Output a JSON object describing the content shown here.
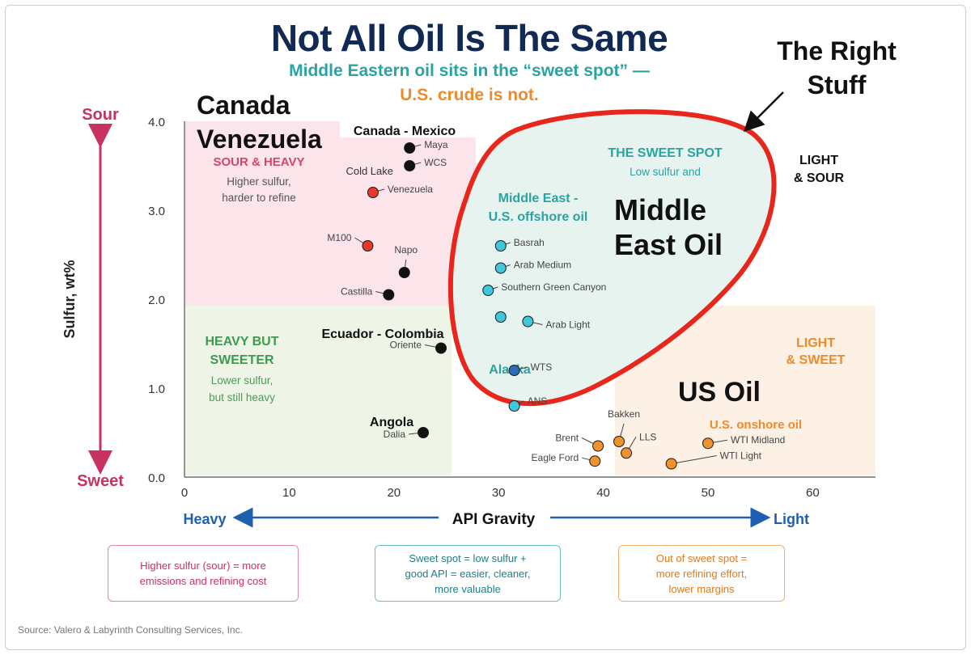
{
  "header": {
    "title": "Not All Oil Is The Same",
    "subtitle_line1": "Middle Eastern oil sits in the “sweet spot” —",
    "subtitle_line2": "U.S. crude is not."
  },
  "colors": {
    "title": "#102a54",
    "teal": "#2aa3a3",
    "orange": "#ef8a2b",
    "pink": "#c8325e",
    "green": "#3f9a4f",
    "blue": "#1f5fb0",
    "highlight_ring": "#e8261c"
  },
  "chart_data": {
    "type": "scatter",
    "xlabel": "API Gravity",
    "ylabel": "Sulfur, wt%",
    "xlim": [
      0,
      66
    ],
    "ylim": [
      0,
      4.0
    ],
    "x_ticks": [
      0,
      10,
      20,
      30,
      40,
      50,
      60
    ],
    "y_ticks": [
      0.0,
      1.0,
      2.0,
      3.0,
      4.0
    ],
    "axis_ends": {
      "y_top": "Sour",
      "y_bottom": "Sweet",
      "x_left": "Heavy",
      "x_right": "Light"
    },
    "regions": [
      {
        "name": "sour-heavy",
        "title": "SOUR & HEAVY",
        "note_line1": "Higher sulfur,",
        "note_line2": "harder to refine",
        "color": "#fbe4ea"
      },
      {
        "name": "heavy-sweeter",
        "title_line1": "HEAVY BUT",
        "title_line2": "SWEETER",
        "note_line1": "Lower sulfur,",
        "note_line2": "but still heavy",
        "color": "#eef4e6"
      },
      {
        "name": "light-sweet",
        "title_line1": "LIGHT",
        "title_line2": "& SWEET",
        "color": "#fdf1e6"
      },
      {
        "name": "sweet-spot",
        "title": "THE SWEET SPOT",
        "note": "Low sulfur and",
        "color": "#e8f4ee"
      },
      {
        "name": "light-sour",
        "title_line1": "LIGHT",
        "title_line2": "& SOUR"
      }
    ],
    "points": [
      {
        "label": "Maya",
        "x": 21.5,
        "y": 3.7,
        "color": "#111111"
      },
      {
        "label": "WCS",
        "x": 21.5,
        "y": 3.5,
        "color": "#111111"
      },
      {
        "label": "Venezuela",
        "x": 18.0,
        "y": 3.2,
        "color": "#e8382b"
      },
      {
        "label": "M100",
        "x": 17.5,
        "y": 2.6,
        "color": "#e8382b"
      },
      {
        "label": "Napo",
        "x": 21.0,
        "y": 2.3,
        "color": "#111111"
      },
      {
        "label": "Castilla",
        "x": 19.5,
        "y": 2.05,
        "color": "#111111"
      },
      {
        "label": "Oriente",
        "x": 24.5,
        "y": 1.45,
        "color": "#111111"
      },
      {
        "label": "Dalia",
        "x": 22.8,
        "y": 0.5,
        "color": "#111111"
      },
      {
        "label": "Basrah",
        "x": 30.2,
        "y": 2.6,
        "color": "#3fc8dc"
      },
      {
        "label": "Arab Medium",
        "x": 30.2,
        "y": 2.35,
        "color": "#3fc8dc"
      },
      {
        "label": "Southern Green Canyon",
        "x": 29.0,
        "y": 2.1,
        "color": "#3fc8dc"
      },
      {
        "label": "",
        "x": 30.2,
        "y": 1.8,
        "color": "#3fc8dc"
      },
      {
        "label": "Arab Light",
        "x": 32.8,
        "y": 1.75,
        "color": "#3fc8dc"
      },
      {
        "label": "WTS",
        "x": 31.5,
        "y": 1.2,
        "color": "#2f6cb8"
      },
      {
        "label": "ANS",
        "x": 31.5,
        "y": 0.8,
        "color": "#3fc8dc"
      },
      {
        "label": "Brent",
        "x": 39.5,
        "y": 0.35,
        "color": "#f0922f"
      },
      {
        "label": "Eagle Ford",
        "x": 39.2,
        "y": 0.18,
        "color": "#f0922f"
      },
      {
        "label": "Bakken",
        "x": 41.5,
        "y": 0.4,
        "color": "#f0922f"
      },
      {
        "label": "LLS",
        "x": 42.2,
        "y": 0.27,
        "color": "#f0922f"
      },
      {
        "label": "WTI Midland",
        "x": 50.0,
        "y": 0.38,
        "color": "#f0922f"
      },
      {
        "label": "WTI Light",
        "x": 46.5,
        "y": 0.15,
        "color": "#f0922f"
      }
    ],
    "group_labels": [
      {
        "text": "Canada - Mexico",
        "color": "#111111"
      },
      {
        "text": "Cold Lake",
        "color": "#333333"
      },
      {
        "text": "Middle East -",
        "color": "#2aa3a3"
      },
      {
        "text": "U.S. offshore oil",
        "color": "#2aa3a3"
      },
      {
        "text": "Alaska",
        "color": "#2aa3a3"
      },
      {
        "text": "Ecuador - Colombia",
        "color": "#111111"
      },
      {
        "text": "Angola",
        "color": "#111111"
      },
      {
        "text": "U.S. onshore oil",
        "color": "#ef8a2b"
      }
    ]
  },
  "annotations": {
    "canada": "Canada",
    "venezuela": "Venezuela",
    "right_stuff_line1": "The Right",
    "right_stuff_line2": "Stuff",
    "middle_east_line1": "Middle",
    "middle_east_line2": "East Oil",
    "us_oil": "US Oil"
  },
  "footer": {
    "box_left_line1": "Higher sulfur (sour) = more",
    "box_left_line2": "emissions and refining cost",
    "box_mid_line1": "Sweet spot = low sulfur +",
    "box_mid_line2": "good API = easier, cleaner,",
    "box_mid_line3": "more valuable",
    "box_right_line1": "Out of sweet spot =",
    "box_right_line2": "more refining effort,",
    "box_right_line3": "lower margins",
    "source": "Source: Valero & Labyrinth Consulting Services, Inc."
  }
}
